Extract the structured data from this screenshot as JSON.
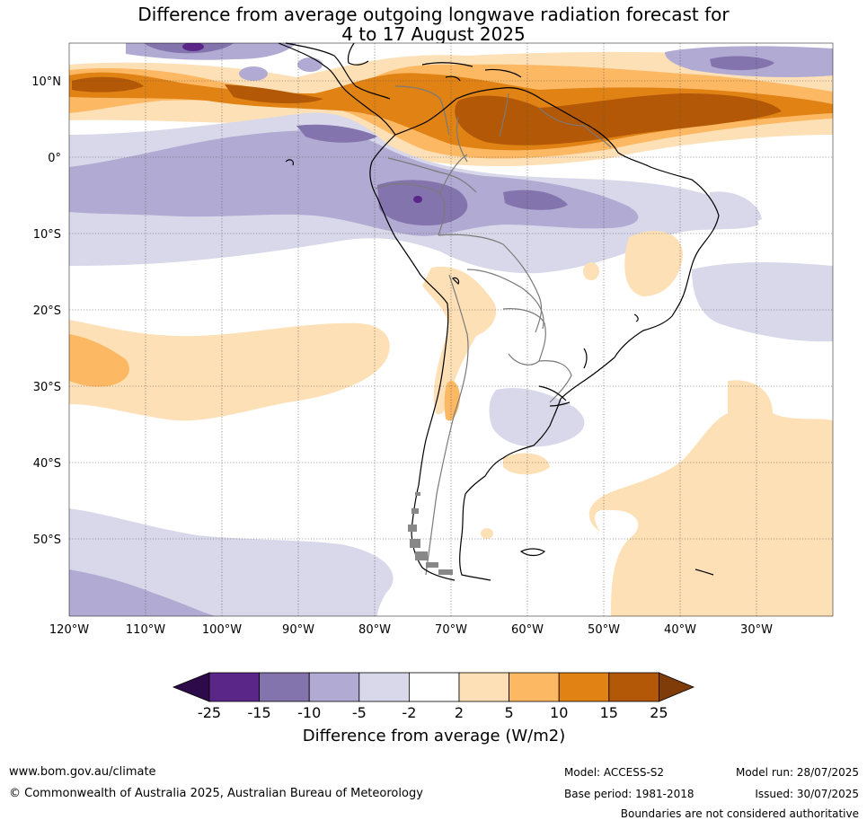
{
  "title": {
    "line1": "Difference from average outgoing longwave radiation forecast for",
    "line2": "4 to 17 August 2025"
  },
  "map": {
    "lon_labels": [
      "120°W",
      "110°W",
      "100°W",
      "90°W",
      "80°W",
      "70°W",
      "60°W",
      "50°W",
      "40°W",
      "30°W"
    ],
    "lat_labels": [
      "10°N",
      "0°",
      "10°S",
      "20°S",
      "30°S",
      "40°S",
      "50°S"
    ]
  },
  "colorbar": {
    "colors": [
      "#2d0a4a",
      "#5a2789",
      "#8474ad",
      "#b1aad2",
      "#d8d8ea",
      "#ffffff",
      "#fee0b6",
      "#fdb863",
      "#e08214",
      "#b35806",
      "#7f3b08"
    ],
    "tick_labels": [
      "-25",
      "-15",
      "-10",
      "-5",
      "-2",
      "2",
      "5",
      "10",
      "15",
      "25"
    ],
    "label": "Difference from average (W/m2)"
  },
  "footer": {
    "website": "www.bom.gov.au/climate",
    "copyright": "© Commonwealth of Australia 2025, Australian Bureau of Meteorology",
    "model": "Model: ACCESS-S2",
    "base_period": "Base period: 1981-2018",
    "model_run": "Model run: 28/07/2025",
    "issued": "Issued: 30/07/2025",
    "disclaimer": "Boundaries are not considered authoritative"
  }
}
